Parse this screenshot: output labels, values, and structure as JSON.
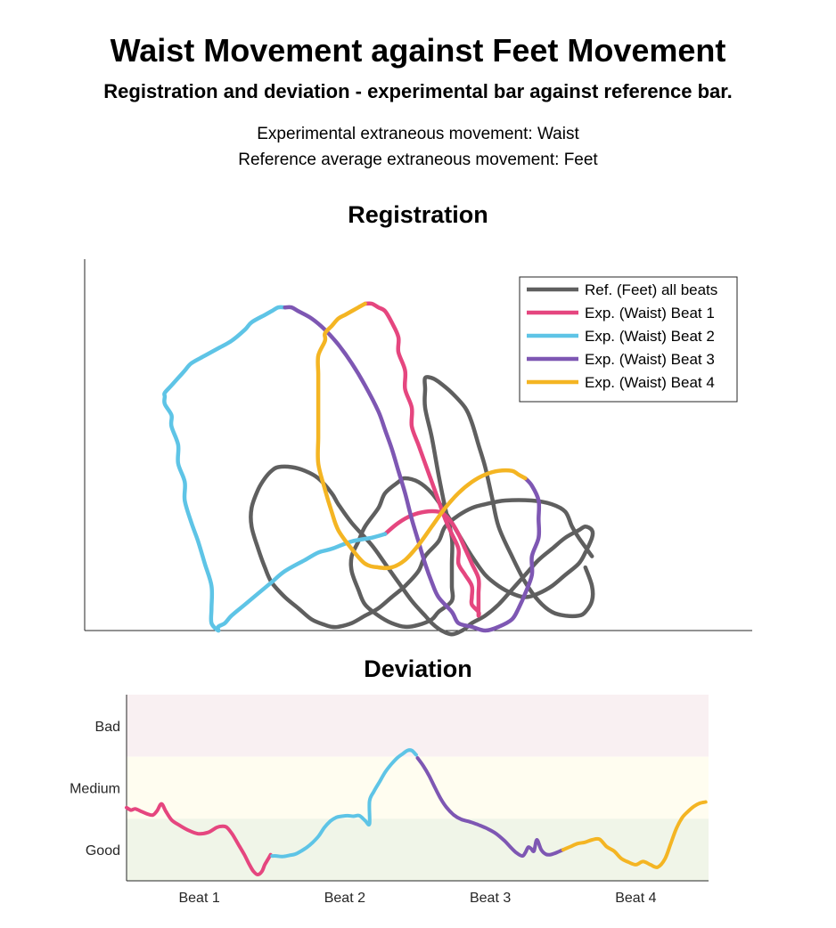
{
  "header": {
    "title": "Waist Movement against Feet Movement",
    "subtitle": "Registration and deviation - experimental bar against reference bar.",
    "info_experimental": "Experimental extraneous movement: Waist",
    "info_reference": "Reference average extraneous movement: Feet"
  },
  "colors": {
    "reference": "#5f5f5f",
    "beat1": "#e5467f",
    "beat2": "#5ec4e6",
    "beat3": "#7e57b3",
    "beat4": "#f4b523",
    "band_bad": "#f9f0f2",
    "band_medium": "#fffdf0",
    "band_good": "#f0f5e8"
  },
  "chart_data": [
    {
      "type": "line",
      "title": "Registration",
      "axes_ticks": "none",
      "grid": false,
      "legend_placement": "top-right",
      "legend": [
        {
          "key": "ref",
          "label": "Ref. (Feet) all beats"
        },
        {
          "key": "beat1",
          "label": "Exp. (Waist) Beat 1"
        },
        {
          "key": "beat2",
          "label": "Exp. (Waist) Beat 2"
        },
        {
          "key": "beat3",
          "label": "Exp. (Waist) Beat 3"
        },
        {
          "key": "beat4",
          "label": "Exp. (Waist) Beat 4"
        }
      ],
      "series": [
        {
          "key": "ref",
          "name": "Ref. (Feet) all beats",
          "x": [
            0.76,
            0.74,
            0.73,
            0.72,
            0.7,
            0.67,
            0.63,
            0.6,
            0.58,
            0.56,
            0.54,
            0.53,
            0.51,
            0.5,
            0.48,
            0.46,
            0.44,
            0.42,
            0.4,
            0.38,
            0.37,
            0.36,
            0.34,
            0.32,
            0.3,
            0.28,
            0.27,
            0.26,
            0.25,
            0.25,
            0.26,
            0.27,
            0.28,
            0.29,
            0.31,
            0.33,
            0.35,
            0.37,
            0.38,
            0.4,
            0.43,
            0.45,
            0.47,
            0.49,
            0.51,
            0.52,
            0.53,
            0.54,
            0.55,
            0.56,
            0.57,
            0.58,
            0.6,
            0.62,
            0.64,
            0.66,
            0.68,
            0.7,
            0.72,
            0.74,
            0.75,
            0.76,
            0.76,
            0.75,
            0.74,
            0.72,
            0.7,
            0.68,
            0.66,
            0.64,
            0.62,
            0.6,
            0.58,
            0.56,
            0.54,
            0.52,
            0.5,
            0.48,
            0.47,
            0.45,
            0.44,
            0.42,
            0.41,
            0.4,
            0.4,
            0.41,
            0.42,
            0.44,
            0.46,
            0.48,
            0.5,
            0.52,
            0.53,
            0.55,
            0.55,
            0.55,
            0.55,
            0.54,
            0.53,
            0.52,
            0.51,
            0.51,
            0.51,
            0.52,
            0.53,
            0.55,
            0.57,
            0.58,
            0.59,
            0.6,
            0.61,
            0.62,
            0.64,
            0.66,
            0.68,
            0.7,
            0.72,
            0.74,
            0.75,
            0.76,
            0.76,
            0.75
          ],
          "y": [
            0.2,
            0.25,
            0.28,
            0.32,
            0.34,
            0.35,
            0.35,
            0.34,
            0.33,
            0.31,
            0.28,
            0.24,
            0.2,
            0.16,
            0.12,
            0.09,
            0.06,
            0.04,
            0.02,
            0.01,
            0.01,
            0.015,
            0.03,
            0.06,
            0.09,
            0.13,
            0.17,
            0.22,
            0.28,
            0.33,
            0.38,
            0.41,
            0.43,
            0.44,
            0.44,
            0.43,
            0.41,
            0.37,
            0.34,
            0.29,
            0.23,
            0.18,
            0.13,
            0.08,
            0.04,
            0.02,
            0.005,
            -0.005,
            -0.01,
            -0.005,
            0.005,
            0.02,
            0.04,
            0.07,
            0.11,
            0.15,
            0.19,
            0.22,
            0.25,
            0.27,
            0.28,
            0.27,
            0.25,
            0.21,
            0.18,
            0.15,
            0.12,
            0.1,
            0.09,
            0.1,
            0.12,
            0.15,
            0.2,
            0.26,
            0.32,
            0.37,
            0.4,
            0.41,
            0.4,
            0.37,
            0.33,
            0.28,
            0.24,
            0.2,
            0.16,
            0.11,
            0.07,
            0.04,
            0.02,
            0.01,
            0.015,
            0.03,
            0.05,
            0.08,
            0.12,
            0.18,
            0.25,
            0.33,
            0.42,
            0.52,
            0.6,
            0.65,
            0.68,
            0.68,
            0.67,
            0.64,
            0.6,
            0.56,
            0.5,
            0.44,
            0.36,
            0.28,
            0.2,
            0.13,
            0.08,
            0.05,
            0.04,
            0.04,
            0.05,
            0.08,
            0.12,
            0.17
          ]
        },
        {
          "key": "beat1",
          "name": "Exp. (Waist) Beat 1",
          "x": [
            0.42,
            0.43,
            0.44,
            0.45,
            0.46,
            0.47,
            0.47,
            0.48,
            0.48,
            0.49,
            0.49,
            0.5,
            0.51,
            0.52,
            0.53,
            0.54,
            0.55,
            0.56,
            0.56,
            0.57,
            0.58,
            0.58,
            0.58,
            0.59,
            0.59,
            0.59,
            0.59,
            0.59,
            0.59,
            0.58,
            0.57,
            0.56,
            0.55,
            0.54,
            0.53,
            0.51,
            0.49,
            0.47,
            0.45
          ],
          "y": [
            0.88,
            0.88,
            0.87,
            0.86,
            0.83,
            0.79,
            0.75,
            0.7,
            0.65,
            0.6,
            0.55,
            0.5,
            0.45,
            0.4,
            0.35,
            0.3,
            0.26,
            0.22,
            0.18,
            0.15,
            0.12,
            0.09,
            0.07,
            0.05,
            0.04,
            0.05,
            0.07,
            0.1,
            0.14,
            0.18,
            0.22,
            0.26,
            0.29,
            0.31,
            0.32,
            0.32,
            0.31,
            0.29,
            0.26
          ]
        },
        {
          "key": "beat2",
          "name": "Exp. (Waist) Beat 2",
          "x": [
            0.45,
            0.43,
            0.4,
            0.37,
            0.35,
            0.33,
            0.3,
            0.28,
            0.26,
            0.24,
            0.22,
            0.21,
            0.2,
            0.2,
            0.19,
            0.19,
            0.19,
            0.18,
            0.17,
            0.16,
            0.15,
            0.15,
            0.14,
            0.14,
            0.13,
            0.13,
            0.12,
            0.12,
            0.12,
            0.13,
            0.14,
            0.15,
            0.16,
            0.18,
            0.2,
            0.22,
            0.24,
            0.25,
            0.27,
            0.28,
            0.29,
            0.3
          ],
          "y": [
            0.26,
            0.25,
            0.24,
            0.22,
            0.21,
            0.19,
            0.16,
            0.13,
            0.1,
            0.07,
            0.04,
            0.02,
            0.01,
            0.0,
            0.02,
            0.06,
            0.12,
            0.18,
            0.24,
            0.29,
            0.35,
            0.4,
            0.45,
            0.5,
            0.55,
            0.58,
            0.61,
            0.63,
            0.64,
            0.66,
            0.68,
            0.7,
            0.72,
            0.74,
            0.76,
            0.78,
            0.81,
            0.83,
            0.85,
            0.86,
            0.87,
            0.87
          ]
        },
        {
          "key": "beat3",
          "name": "Exp. (Waist) Beat 3",
          "x": [
            0.3,
            0.31,
            0.32,
            0.34,
            0.36,
            0.38,
            0.4,
            0.42,
            0.44,
            0.45,
            0.46,
            0.47,
            0.48,
            0.49,
            0.5,
            0.51,
            0.52,
            0.53,
            0.55,
            0.56,
            0.58,
            0.6,
            0.62,
            0.64,
            0.65,
            0.66,
            0.67,
            0.67,
            0.68,
            0.68,
            0.68,
            0.67,
            0.66
          ],
          "y": [
            0.87,
            0.87,
            0.86,
            0.84,
            0.81,
            0.77,
            0.72,
            0.66,
            0.59,
            0.54,
            0.49,
            0.43,
            0.37,
            0.3,
            0.24,
            0.18,
            0.13,
            0.09,
            0.05,
            0.02,
            0.01,
            0.0,
            0.01,
            0.03,
            0.06,
            0.1,
            0.15,
            0.2,
            0.25,
            0.3,
            0.35,
            0.39,
            0.41
          ]
        },
        {
          "key": "beat4",
          "name": "Exp. (Waist) Beat 4",
          "x": [
            0.66,
            0.65,
            0.64,
            0.62,
            0.6,
            0.58,
            0.56,
            0.54,
            0.52,
            0.5,
            0.48,
            0.46,
            0.44,
            0.42,
            0.4,
            0.38,
            0.37,
            0.36,
            0.35,
            0.35,
            0.35,
            0.35,
            0.35,
            0.35,
            0.36,
            0.36,
            0.37,
            0.38,
            0.39,
            0.4,
            0.41,
            0.42
          ],
          "y": [
            0.41,
            0.42,
            0.43,
            0.43,
            0.42,
            0.4,
            0.37,
            0.33,
            0.28,
            0.23,
            0.19,
            0.17,
            0.17,
            0.18,
            0.22,
            0.27,
            0.32,
            0.38,
            0.45,
            0.52,
            0.58,
            0.64,
            0.69,
            0.74,
            0.78,
            0.8,
            0.82,
            0.84,
            0.85,
            0.86,
            0.87,
            0.88
          ]
        }
      ]
    },
    {
      "type": "line",
      "title": "Deviation",
      "x_tick_labels": [
        "Beat 1",
        "Beat 2",
        "Beat 3",
        "Beat 4"
      ],
      "y_tick_labels": [
        "Bad",
        "Medium",
        "Good"
      ],
      "bands": [
        {
          "label": "Bad",
          "range": [
            2,
            3
          ]
        },
        {
          "label": "Medium",
          "range": [
            1,
            2
          ]
        },
        {
          "label": "Good",
          "range": [
            0,
            1
          ]
        }
      ],
      "xlim": [
        0,
        4
      ],
      "ylim": [
        0,
        3
      ],
      "segments": [
        {
          "key": "beat1",
          "x": [
            0.0,
            0.03,
            0.06,
            0.1,
            0.14,
            0.18,
            0.21,
            0.24,
            0.27,
            0.31,
            0.36,
            0.42,
            0.49,
            0.56,
            0.62,
            0.66,
            0.69,
            0.73,
            0.77,
            0.81,
            0.84,
            0.87,
            0.9,
            0.93,
            0.95,
            0.97,
            0.99
          ],
          "y": [
            1.18,
            1.14,
            1.16,
            1.12,
            1.08,
            1.06,
            1.13,
            1.24,
            1.12,
            0.98,
            0.9,
            0.82,
            0.76,
            0.78,
            0.86,
            0.88,
            0.86,
            0.74,
            0.58,
            0.42,
            0.28,
            0.16,
            0.1,
            0.15,
            0.26,
            0.34,
            0.42
          ]
        },
        {
          "key": "beat2",
          "x": [
            1.0,
            1.03,
            1.07,
            1.12,
            1.16,
            1.2,
            1.24,
            1.28,
            1.32,
            1.36,
            1.4,
            1.44,
            1.48,
            1.52,
            1.56,
            1.6,
            1.64,
            1.67,
            1.67,
            1.7,
            1.74,
            1.78,
            1.82,
            1.86,
            1.9,
            1.93,
            1.96,
            1.99
          ],
          "y": [
            0.4,
            0.4,
            0.39,
            0.41,
            0.43,
            0.48,
            0.54,
            0.62,
            0.72,
            0.86,
            0.96,
            1.02,
            1.04,
            1.05,
            1.04,
            1.05,
            0.97,
            0.92,
            1.28,
            1.44,
            1.6,
            1.76,
            1.88,
            1.98,
            2.05,
            2.1,
            2.1,
            2.03
          ]
        },
        {
          "key": "beat3",
          "x": [
            2.0,
            2.04,
            2.08,
            2.12,
            2.16,
            2.2,
            2.25,
            2.3,
            2.36,
            2.42,
            2.48,
            2.54,
            2.6,
            2.64,
            2.68,
            2.72,
            2.74,
            2.76,
            2.78,
            2.8,
            2.82,
            2.85,
            2.88,
            2.91,
            2.94,
            2.97,
            3.0
          ],
          "y": [
            1.98,
            1.85,
            1.69,
            1.5,
            1.32,
            1.18,
            1.06,
            0.99,
            0.95,
            0.9,
            0.84,
            0.76,
            0.64,
            0.54,
            0.45,
            0.4,
            0.45,
            0.54,
            0.52,
            0.48,
            0.66,
            0.5,
            0.43,
            0.42,
            0.44,
            0.47,
            0.5
          ]
        },
        {
          "key": "beat4",
          "x": [
            3.0,
            3.05,
            3.1,
            3.15,
            3.2,
            3.25,
            3.3,
            3.35,
            3.4,
            3.45,
            3.5,
            3.55,
            3.6,
            3.65,
            3.7,
            3.74,
            3.78,
            3.82,
            3.86,
            3.9,
            3.94,
            3.98
          ],
          "y": [
            0.5,
            0.55,
            0.6,
            0.62,
            0.66,
            0.67,
            0.55,
            0.48,
            0.36,
            0.3,
            0.26,
            0.31,
            0.26,
            0.22,
            0.35,
            0.6,
            0.85,
            1.02,
            1.12,
            1.2,
            1.25,
            1.27
          ]
        }
      ]
    }
  ]
}
